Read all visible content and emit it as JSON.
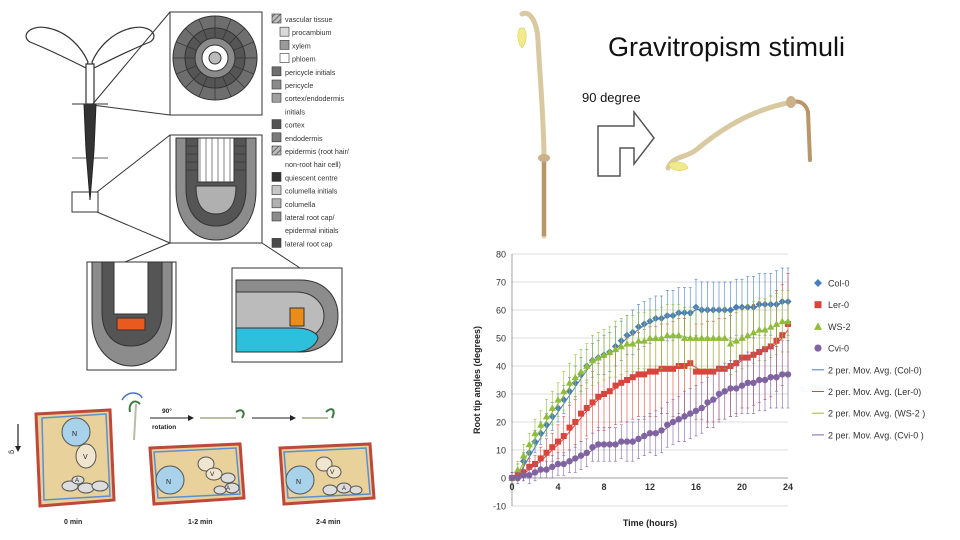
{
  "slide": {
    "title": "Gravitropism stimuli",
    "rotation_label": "90 degree"
  },
  "root_legend": {
    "items": [
      {
        "label": "vascular tissue",
        "indent": false,
        "fill": "hatch"
      },
      {
        "label": "procambium",
        "indent": true,
        "fill": "#d9d9d9"
      },
      {
        "label": "xylem",
        "indent": true,
        "fill": "#9a9a9a"
      },
      {
        "label": "phloem",
        "indent": true,
        "fill": "#ffffff"
      },
      {
        "label": "pericycle initials",
        "indent": false,
        "fill": "#6e6e6e"
      },
      {
        "label": "pericycle",
        "indent": false,
        "fill": "#8a8a8a"
      },
      {
        "label": "cortex/endodermis",
        "indent": false,
        "fill": "#a0a0a0"
      },
      {
        "label": "initials",
        "indent": false,
        "fill": "none"
      },
      {
        "label": "cortex",
        "indent": false,
        "fill": "#555555"
      },
      {
        "label": "endodermis",
        "indent": false,
        "fill": "#7a7a7a"
      },
      {
        "label": "epidermis (root hair/",
        "indent": false,
        "fill": "hatch"
      },
      {
        "label": "non-root hair cell)",
        "indent": false,
        "fill": "none"
      },
      {
        "label": "quiescent centre",
        "indent": false,
        "fill": "#333333"
      },
      {
        "label": "columella initials",
        "indent": false,
        "fill": "#c8c8c8"
      },
      {
        "label": "columella",
        "indent": false,
        "fill": "#b0b0b0"
      },
      {
        "label": "lateral root cap/",
        "indent": false,
        "fill": "#8c8c8c"
      },
      {
        "label": "epidermal initials",
        "indent": false,
        "fill": "none"
      },
      {
        "label": "lateral root cap",
        "indent": false,
        "fill": "#4a4a4a"
      }
    ]
  },
  "statocyte_panel": {
    "labels": {
      "nucleus": "N",
      "vacuole": "V",
      "amyloplast": "A",
      "g_axis": "g",
      "rotation_top": "90°",
      "rotation_bottom": "rotation"
    },
    "times": [
      "0 min",
      "1-2 min",
      "2-4 min"
    ]
  },
  "chart_data": {
    "type": "line",
    "xlabel": "Time (hours)",
    "ylabel": "Root tip angles (degrees)",
    "xlim": [
      0,
      24
    ],
    "ylim": [
      -10,
      80
    ],
    "xticks": [
      0,
      4,
      8,
      12,
      16,
      20,
      24
    ],
    "yticks": [
      -10,
      0,
      10,
      20,
      30,
      40,
      50,
      60,
      70,
      80
    ],
    "grid": true,
    "legend_position": "right",
    "x": [
      0,
      0.5,
      1,
      1.5,
      2,
      2.5,
      3,
      3.5,
      4,
      4.5,
      5,
      5.5,
      6,
      6.5,
      7,
      7.5,
      8,
      8.5,
      9,
      9.5,
      10,
      10.5,
      11,
      11.5,
      12,
      12.5,
      13,
      13.5,
      14,
      14.5,
      15,
      15.5,
      16,
      16.5,
      17,
      17.5,
      18,
      18.5,
      19,
      19.5,
      20,
      20.5,
      21,
      21.5,
      22,
      22.5,
      23,
      23.5,
      24
    ],
    "series": [
      {
        "name": "Col-0",
        "color": "#4a7ebb",
        "marker": "diamond",
        "values": [
          0,
          2,
          6,
          9,
          13,
          16,
          19,
          22,
          25,
          28,
          31,
          34,
          37,
          40,
          42,
          43,
          44,
          45,
          47,
          49,
          51,
          52,
          54,
          55,
          56,
          57,
          57,
          58,
          58,
          59,
          59,
          59,
          61,
          60,
          60,
          60,
          60,
          60,
          60,
          61,
          61,
          61,
          61,
          62,
          62,
          62,
          62,
          63,
          63
        ],
        "error": [
          2,
          3,
          3,
          3,
          4,
          4,
          4,
          5,
          5,
          5,
          5,
          6,
          6,
          6,
          6,
          6,
          7,
          7,
          7,
          7,
          7,
          8,
          8,
          8,
          8,
          8,
          8,
          9,
          9,
          9,
          9,
          9,
          10,
          10,
          10,
          10,
          10,
          10,
          10,
          10,
          10,
          11,
          11,
          11,
          11,
          11,
          12,
          12,
          12
        ]
      },
      {
        "name": "Ler-0",
        "color": "#d9453d",
        "marker": "square",
        "values": [
          0,
          1,
          2,
          4,
          5,
          7,
          9,
          11,
          13,
          15,
          18,
          20,
          23,
          25,
          27,
          29,
          30,
          31,
          33,
          34,
          35,
          36,
          37,
          37,
          38,
          38,
          39,
          39,
          39,
          40,
          40,
          41,
          38,
          38,
          38,
          38,
          39,
          39,
          40,
          41,
          43,
          43,
          44,
          45,
          46,
          47,
          49,
          51,
          55
        ],
        "error": [
          2,
          2,
          3,
          3,
          3,
          4,
          5,
          5,
          6,
          7,
          8,
          9,
          10,
          10,
          11,
          12,
          13,
          13,
          14,
          14,
          15,
          15,
          15,
          16,
          16,
          16,
          16,
          16,
          17,
          17,
          17,
          17,
          17,
          17,
          18,
          18,
          18,
          18,
          18,
          18,
          18,
          18,
          18,
          18,
          18,
          18,
          18,
          18,
          18
        ]
      },
      {
        "name": "WS-2",
        "color": "#8fbd3a",
        "marker": "triangle",
        "values": [
          0,
          3,
          8,
          12,
          16,
          19,
          22,
          25,
          28,
          31,
          34,
          36,
          38,
          40,
          42,
          43,
          44,
          45,
          46,
          47,
          48,
          48,
          49,
          49,
          50,
          50,
          50,
          51,
          51,
          51,
          50,
          50,
          50,
          50,
          50,
          50,
          50,
          50,
          48,
          49,
          50,
          51,
          52,
          53,
          53,
          54,
          55,
          56,
          56
        ],
        "error": [
          2,
          3,
          4,
          4,
          5,
          5,
          6,
          6,
          6,
          7,
          7,
          8,
          8,
          8,
          9,
          9,
          9,
          9,
          10,
          10,
          10,
          10,
          10,
          10,
          10,
          10,
          11,
          11,
          11,
          11,
          11,
          11,
          11,
          11,
          11,
          11,
          11,
          11,
          11,
          11,
          11,
          11,
          11,
          11,
          11,
          11,
          11,
          11,
          11
        ]
      },
      {
        "name": "Cvi-0",
        "color": "#8064a2",
        "marker": "circle",
        "values": [
          0,
          0,
          1,
          1,
          2,
          3,
          3,
          4,
          5,
          5,
          6,
          7,
          8,
          9,
          11,
          12,
          12,
          12,
          12,
          13,
          13,
          13,
          14,
          15,
          16,
          16,
          17,
          19,
          20,
          21,
          22,
          23,
          24,
          25,
          27,
          28,
          30,
          31,
          32,
          32,
          33,
          34,
          34,
          35,
          35,
          36,
          36,
          37,
          37
        ],
        "error": [
          2,
          2,
          2,
          3,
          3,
          3,
          3,
          4,
          4,
          4,
          4,
          5,
          5,
          5,
          5,
          6,
          6,
          6,
          6,
          6,
          7,
          7,
          7,
          7,
          7,
          8,
          8,
          8,
          8,
          8,
          9,
          9,
          9,
          9,
          9,
          10,
          10,
          10,
          10,
          10,
          10,
          11,
          11,
          11,
          11,
          11,
          11,
          12,
          12
        ]
      }
    ],
    "trendlines": [
      {
        "name": "2 per. Mov. Avg. (Col-0)",
        "color": "#4a7ebb"
      },
      {
        "name": "2 per. Mov. Avg. (Ler-0)",
        "color": "#d9453d"
      },
      {
        "name": "2 per. Mov. Avg. (WS-2 )",
        "color": "#8fbd3a"
      },
      {
        "name": "2 per. Mov. Avg. (Cvi-0 )",
        "color": "#8064a2"
      }
    ]
  }
}
